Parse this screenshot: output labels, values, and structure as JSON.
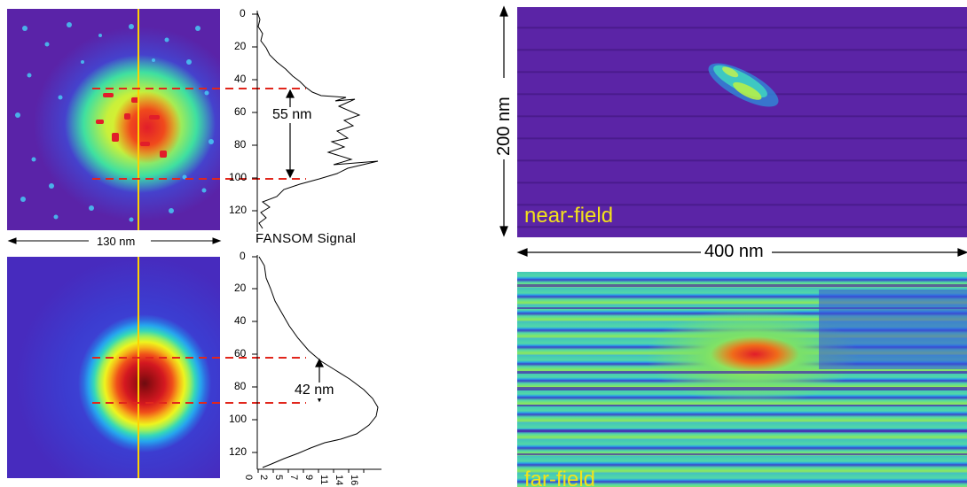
{
  "left_panel": {
    "top_image": {
      "scale_bar": "130 nm",
      "fwhm_label": "55 nm",
      "axis_ticks": [
        "0",
        "20",
        "40",
        "60",
        "80",
        "100",
        "120"
      ],
      "profile_caption": "FANSOM Signal"
    },
    "bottom_image": {
      "fwhm_label": "42 nm",
      "axis_ticks": [
        "0",
        "20",
        "40",
        "60",
        "80",
        "100",
        "120"
      ],
      "signal_ticks": [
        "0",
        "2",
        "5",
        "7",
        "9",
        "11",
        "14",
        "16"
      ]
    }
  },
  "right_panel": {
    "near_field": {
      "label": "near-field",
      "height_bar": "200 nm"
    },
    "width_bar": "400 nm",
    "far_field": {
      "label": "far-field"
    }
  },
  "colors": {
    "background_map": "#5b1fa3",
    "guide_line": "#ffd200",
    "marker_dashes": "#e1261c",
    "label_text": "#f3e21a"
  }
}
